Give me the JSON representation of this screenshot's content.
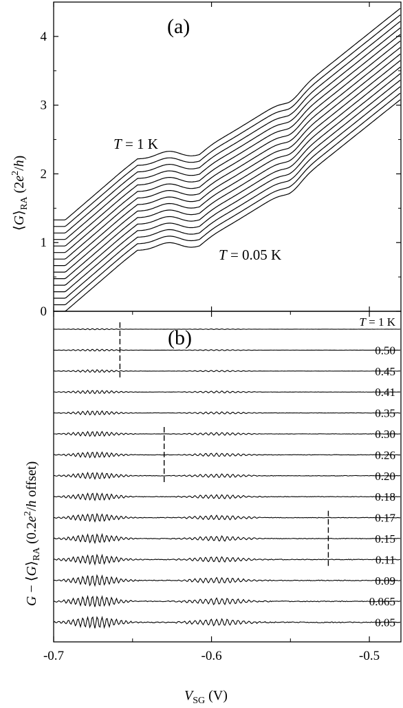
{
  "chart_data": [
    {
      "type": "line",
      "panel_label": "(a)",
      "ylabel": "⟨G⟩RA  (2e²/h)",
      "ylabel_parts": {
        "G": "G",
        "sub": "RA",
        "unit_pre": "(2",
        "e": "e",
        "sup": "2",
        "unit_post": "/",
        "h": "h",
        "close": ")"
      },
      "ylim": [
        0,
        4.5
      ],
      "yticks": [
        0,
        1,
        2,
        3,
        4
      ],
      "xlim": [
        -0.7,
        -0.48
      ],
      "curve_count": 15,
      "annotations": {
        "top": {
          "T": "T",
          "eq": " = 1 K"
        },
        "bottom": {
          "T": "T",
          "eq": " = 0.05 K"
        }
      },
      "series_endpoints": {
        "lowest_T_curve": {
          "x": [
            -0.7,
            -0.48
          ],
          "y": [
            0.0,
            3.15
          ]
        },
        "highest_T_curve": {
          "x": [
            -0.7,
            -0.48
          ],
          "y": [
            1.4,
            4.4
          ]
        }
      }
    },
    {
      "type": "line",
      "panel_label": "(b)",
      "ylabel": "G − ⟨G⟩RA  (0.2e²/h offset)",
      "ylabel_parts": {
        "pre": "G − ⟨",
        "G": "G",
        "close": "⟩",
        "sub": "RA",
        "unit_pre": "  (0.2",
        "e": "e",
        "sup": "2",
        "slash": "/",
        "h": "h",
        "unit_post": " offset)"
      },
      "xlabel": "VSG  (V)",
      "xlabel_parts": {
        "V": "V",
        "sub": "SG",
        "unit": "  (V)"
      },
      "xlim": [
        -0.7,
        -0.48
      ],
      "xticks": [
        "-0.7",
        "-0.6",
        "-0.5"
      ],
      "xtick_values": [
        -0.7,
        -0.6,
        -0.5
      ],
      "offset_per_trace": 0.2,
      "temperature_labels_K": [
        "T = 1 K",
        "0.50",
        "0.45",
        "0.41",
        "0.35",
        "0.30",
        "0.26",
        "0.20",
        "0.18",
        "0.17",
        "0.15",
        "0.11",
        "0.09",
        "0.065",
        "0.05"
      ],
      "first_label_parts": {
        "T": "T",
        "eq": " = 1 K"
      },
      "dashed_markers": [
        {
          "x": -0.658,
          "traces_from": 0,
          "traces_to": 2
        },
        {
          "x": -0.63,
          "traces_from": 5,
          "traces_to": 7
        },
        {
          "x": -0.526,
          "traces_from": 9,
          "traces_to": 11
        }
      ]
    }
  ]
}
